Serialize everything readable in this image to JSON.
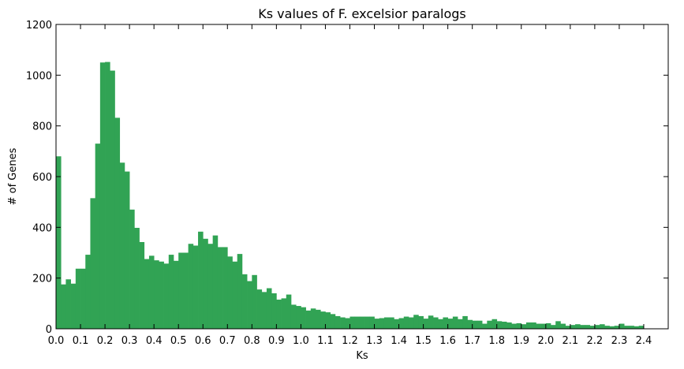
{
  "chart_data": {
    "type": "bar",
    "title": "Ks values of F. excelsior paralogs",
    "xlabel": "Ks",
    "ylabel": "# of Genes",
    "xlim": [
      0.0,
      2.5
    ],
    "ylim": [
      0,
      1200
    ],
    "bin_width": 0.02,
    "x_ticks": [
      "0.0",
      "0.1",
      "0.2",
      "0.3",
      "0.4",
      "0.5",
      "0.6",
      "0.7",
      "0.8",
      "0.9",
      "1.0",
      "1.1",
      "1.2",
      "1.3",
      "1.4",
      "1.5",
      "1.6",
      "1.7",
      "1.8",
      "1.9",
      "2.0",
      "2.1",
      "2.2",
      "2.3",
      "2.4"
    ],
    "y_ticks": [
      "0",
      "200",
      "400",
      "600",
      "800",
      "1000",
      "1200"
    ],
    "bar_color": "#31a354",
    "grid": false,
    "legend": "none",
    "series": [
      {
        "x_start": 0.0,
        "values": [
          680,
          175,
          195,
          178,
          237,
          237,
          292,
          515,
          730,
          1050,
          1052,
          1018,
          832,
          655,
          620,
          470,
          398,
          342,
          275,
          288,
          270,
          265,
          257,
          292,
          268,
          300,
          300,
          335,
          328,
          383,
          355,
          335,
          368,
          322,
          322,
          285,
          265,
          295,
          215,
          188,
          212,
          155,
          145,
          160,
          140,
          115,
          120,
          135,
          95,
          90,
          85,
          72,
          80,
          75,
          68,
          65,
          58,
          50,
          45,
          42,
          48,
          48,
          48,
          48,
          48,
          40,
          42,
          45,
          45,
          38,
          42,
          48,
          45,
          55,
          50,
          40,
          52,
          45,
          38,
          45,
          40,
          48,
          38,
          50,
          35,
          32,
          32,
          20,
          32,
          38,
          30,
          28,
          25,
          20,
          22,
          18,
          25,
          25,
          20,
          20,
          22,
          15,
          30,
          20,
          12,
          15,
          18,
          15,
          15,
          12,
          15,
          18,
          12,
          10,
          12,
          20,
          12,
          12,
          10,
          12
        ]
      }
    ]
  }
}
